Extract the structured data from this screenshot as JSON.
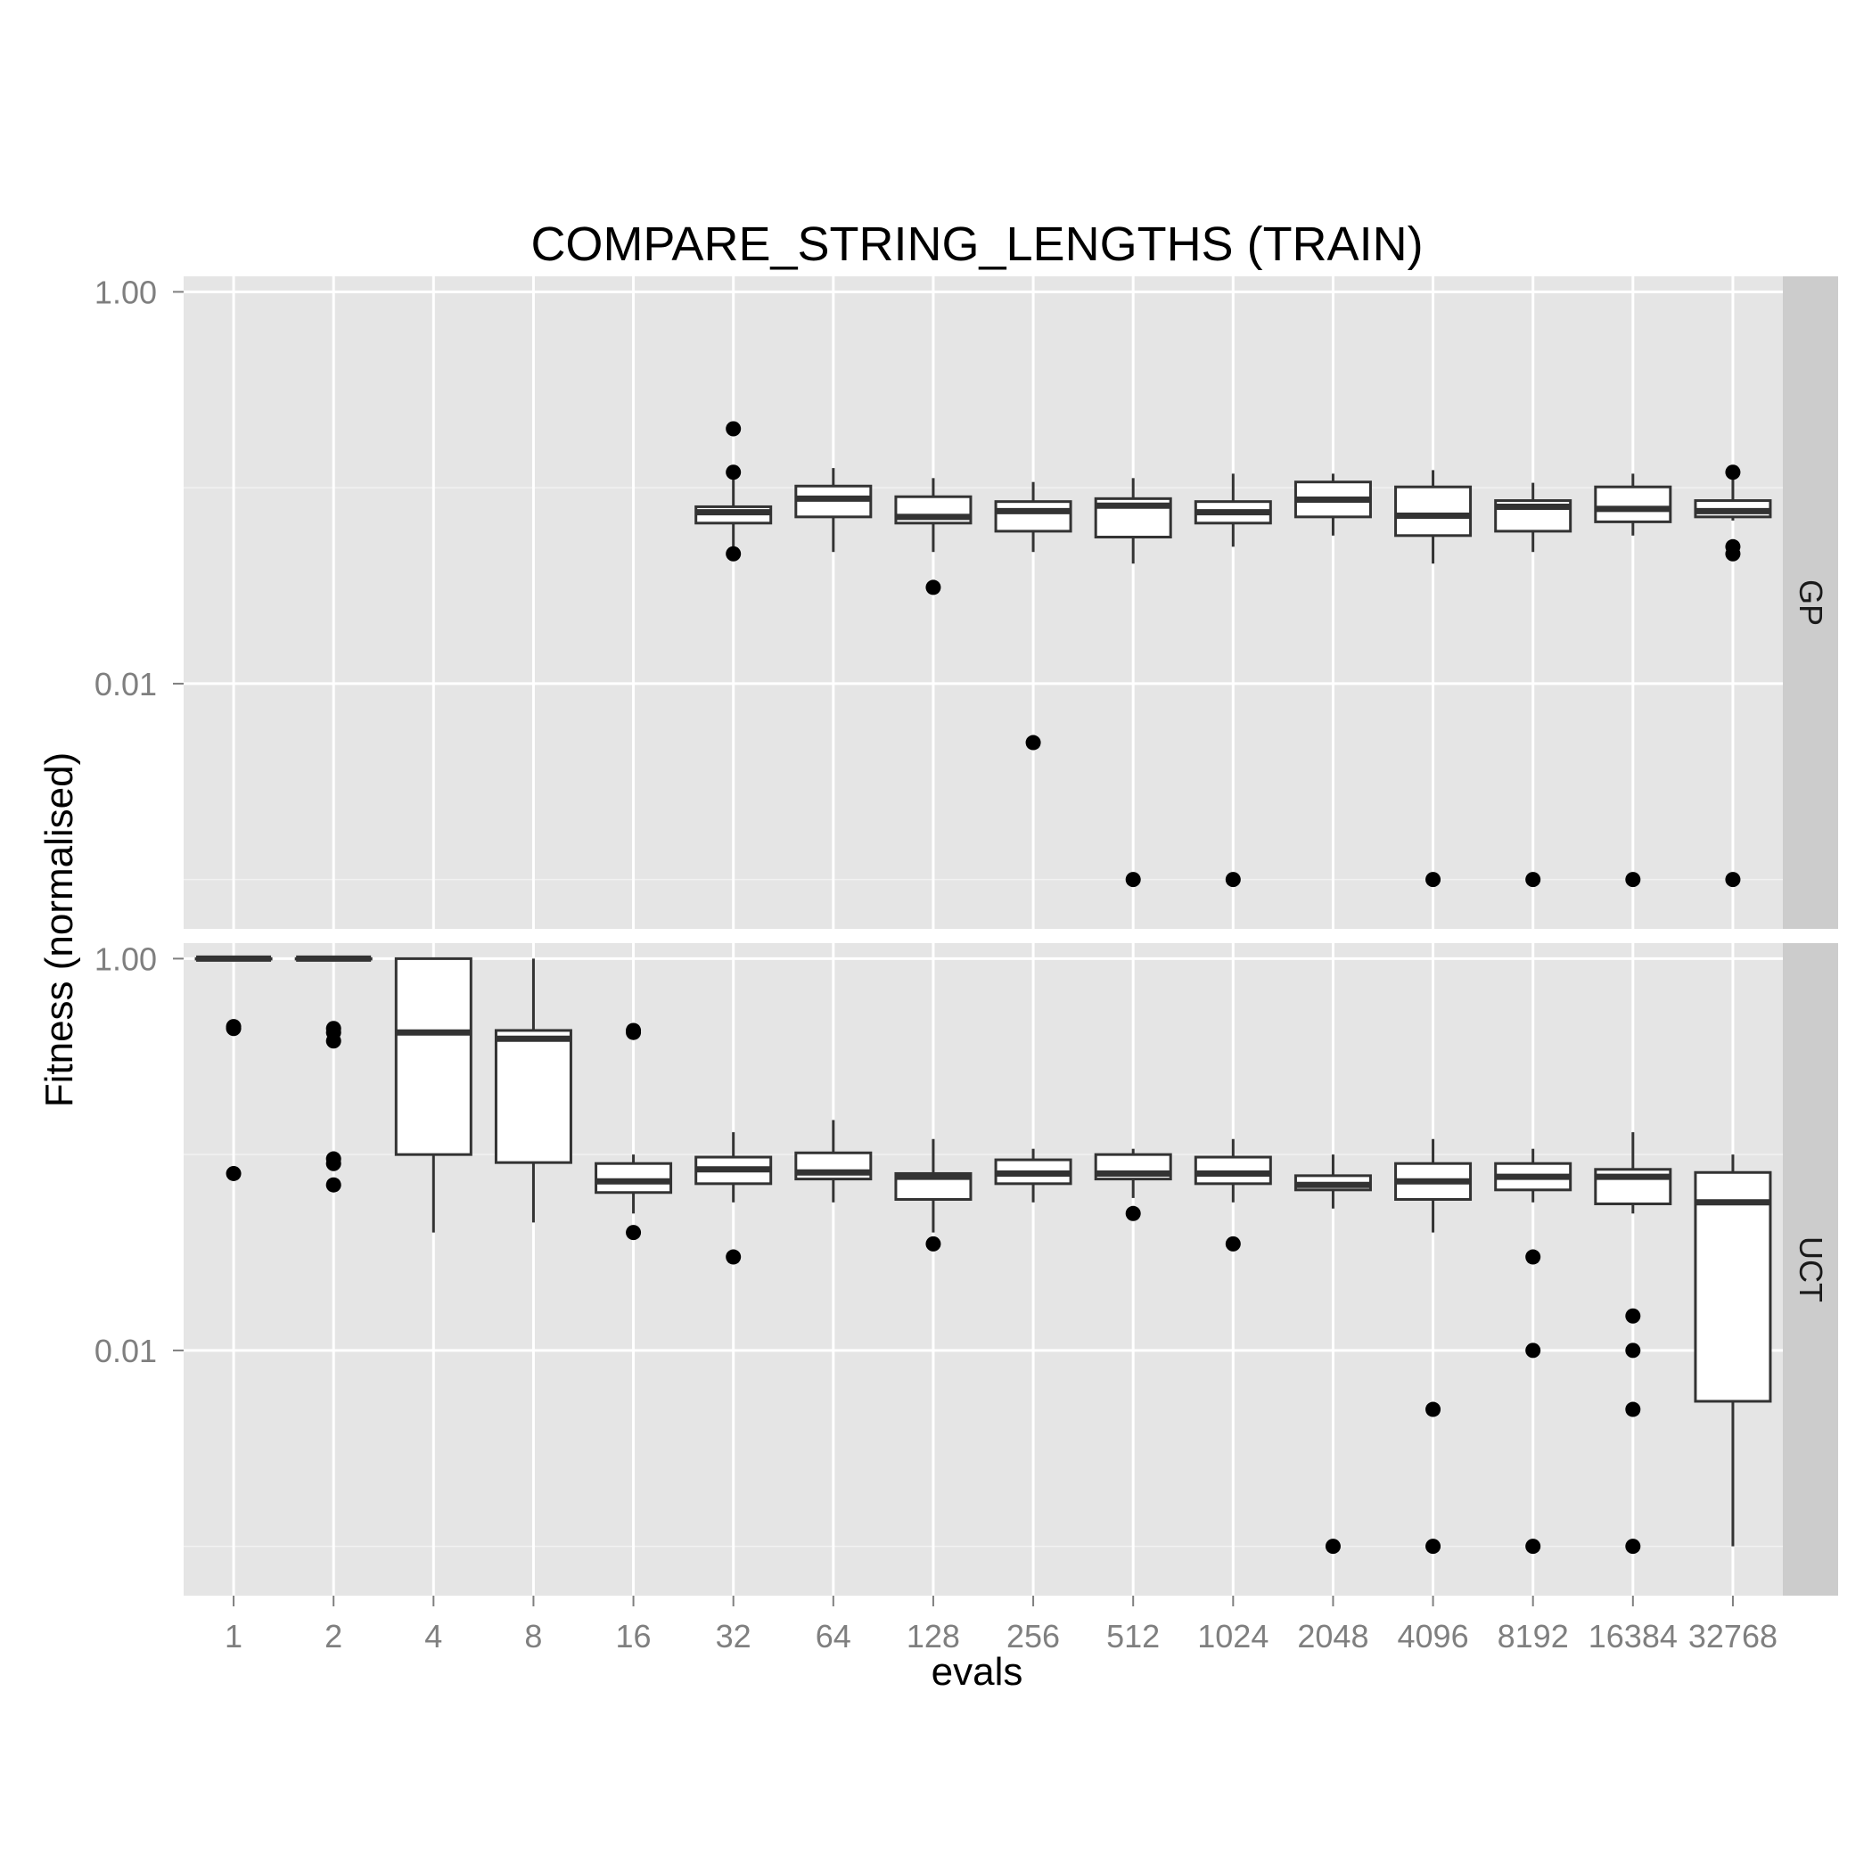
{
  "chart_data": {
    "type": "box",
    "title": "COMPARE_STRING_LENGTHS (TRAIN)",
    "xlabel": "evals",
    "ylabel": "Fitness (normalised)",
    "y_scale": "log10",
    "ylim": [
      0.00056,
      1.2
    ],
    "y_ticks": [
      1.0,
      0.01
    ],
    "y_tick_labels": [
      "1.00",
      "0.01"
    ],
    "categories": [
      "1",
      "2",
      "4",
      "8",
      "16",
      "32",
      "64",
      "128",
      "256",
      "512",
      "1024",
      "2048",
      "4096",
      "8192",
      "16384",
      "32768"
    ],
    "x_tick_labels": [
      "1",
      "2",
      "4",
      "8",
      "16",
      "32",
      "64",
      "128",
      "256",
      "512",
      "1024",
      "2048",
      "4096",
      "8192",
      "16384",
      "32768"
    ],
    "grid": true,
    "facets": [
      {
        "name": "GP",
        "boxes": [
          null,
          null,
          null,
          null,
          null,
          {
            "category": "32",
            "min": 0.046,
            "q1": 0.066,
            "median": 0.075,
            "q3": 0.08,
            "max": 0.11,
            "outliers": [
              0.2,
              0.12,
              0.046
            ]
          },
          {
            "category": "64",
            "min": 0.047,
            "q1": 0.071,
            "median": 0.088,
            "q3": 0.102,
            "max": 0.126,
            "outliers": []
          },
          {
            "category": "128",
            "min": 0.047,
            "q1": 0.066,
            "median": 0.071,
            "q3": 0.09,
            "max": 0.112,
            "outliers": [
              0.031
            ]
          },
          {
            "category": "256",
            "min": 0.047,
            "q1": 0.06,
            "median": 0.076,
            "q3": 0.085,
            "max": 0.107,
            "outliers": [
              0.005
            ]
          },
          {
            "category": "512",
            "min": 0.041,
            "q1": 0.056,
            "median": 0.081,
            "q3": 0.088,
            "max": 0.112,
            "outliers": [
              0.001
            ]
          },
          {
            "category": "1024",
            "min": 0.05,
            "q1": 0.066,
            "median": 0.075,
            "q3": 0.085,
            "max": 0.118,
            "outliers": [
              0.001
            ]
          },
          {
            "category": "2048",
            "min": 0.057,
            "q1": 0.071,
            "median": 0.087,
            "q3": 0.107,
            "max": 0.118,
            "outliers": []
          },
          {
            "category": "4096",
            "min": 0.041,
            "q1": 0.057,
            "median": 0.072,
            "q3": 0.101,
            "max": 0.123,
            "outliers": [
              0.001
            ]
          },
          {
            "category": "8192",
            "min": 0.047,
            "q1": 0.06,
            "median": 0.08,
            "q3": 0.086,
            "max": 0.106,
            "outliers": [
              0.001
            ]
          },
          {
            "category": "16384",
            "min": 0.057,
            "q1": 0.067,
            "median": 0.078,
            "q3": 0.101,
            "max": 0.118,
            "outliers": [
              0.001
            ]
          },
          {
            "category": "32768",
            "min": 0.068,
            "q1": 0.071,
            "median": 0.076,
            "q3": 0.086,
            "max": 0.118,
            "outliers": [
              0.12,
              0.05,
              0.046,
              0.001
            ]
          }
        ]
      },
      {
        "name": "UCT",
        "boxes": [
          {
            "category": "1",
            "min": 1.0,
            "q1": 1.0,
            "median": 1.0,
            "q3": 1.0,
            "max": 1.0,
            "outliers": [
              0.45,
              0.44,
              0.08
            ]
          },
          {
            "category": "2",
            "min": 1.0,
            "q1": 1.0,
            "median": 1.0,
            "q3": 1.0,
            "max": 1.0,
            "outliers": [
              0.44,
              0.42,
              0.38,
              0.095,
              0.09,
              0.07
            ]
          },
          {
            "category": "4",
            "min": 0.04,
            "q1": 0.1,
            "median": 0.42,
            "q3": 1.0,
            "max": 1.0,
            "outliers": []
          },
          {
            "category": "8",
            "min": 0.045,
            "q1": 0.091,
            "median": 0.39,
            "q3": 0.43,
            "max": 1.0,
            "outliers": []
          },
          {
            "category": "16",
            "min": 0.05,
            "q1": 0.064,
            "median": 0.073,
            "q3": 0.09,
            "max": 0.1,
            "outliers": [
              0.43,
              0.42,
              0.04
            ]
          },
          {
            "category": "32",
            "min": 0.057,
            "q1": 0.071,
            "median": 0.084,
            "q3": 0.097,
            "max": 0.13,
            "outliers": [
              0.03
            ]
          },
          {
            "category": "64",
            "min": 0.057,
            "q1": 0.075,
            "median": 0.081,
            "q3": 0.102,
            "max": 0.15,
            "outliers": []
          },
          {
            "category": "128",
            "min": 0.04,
            "q1": 0.059,
            "median": 0.077,
            "q3": 0.08,
            "max": 0.12,
            "outliers": [
              0.035
            ]
          },
          {
            "category": "256",
            "min": 0.057,
            "q1": 0.071,
            "median": 0.08,
            "q3": 0.094,
            "max": 0.107,
            "outliers": []
          },
          {
            "category": "512",
            "min": 0.06,
            "q1": 0.075,
            "median": 0.08,
            "q3": 0.1,
            "max": 0.107,
            "outliers": [
              0.05
            ]
          },
          {
            "category": "1024",
            "min": 0.057,
            "q1": 0.071,
            "median": 0.08,
            "q3": 0.097,
            "max": 0.12,
            "outliers": [
              0.035
            ]
          },
          {
            "category": "2048",
            "min": 0.053,
            "q1": 0.066,
            "median": 0.07,
            "q3": 0.078,
            "max": 0.1,
            "outliers": [
              0.001
            ]
          },
          {
            "category": "4096",
            "min": 0.04,
            "q1": 0.059,
            "median": 0.073,
            "q3": 0.09,
            "max": 0.12,
            "outliers": [
              0.005,
              0.001
            ]
          },
          {
            "category": "8192",
            "min": 0.057,
            "q1": 0.066,
            "median": 0.077,
            "q3": 0.09,
            "max": 0.107,
            "outliers": [
              0.03,
              0.01,
              0.001
            ]
          },
          {
            "category": "16384",
            "min": 0.05,
            "q1": 0.056,
            "median": 0.077,
            "q3": 0.084,
            "max": 0.13,
            "outliers": [
              0.015,
              0.01,
              0.005,
              0.001
            ]
          },
          {
            "category": "32768",
            "min": 0.001,
            "q1": 0.0055,
            "median": 0.057,
            "q3": 0.081,
            "max": 0.1,
            "outliers": []
          }
        ]
      }
    ]
  }
}
